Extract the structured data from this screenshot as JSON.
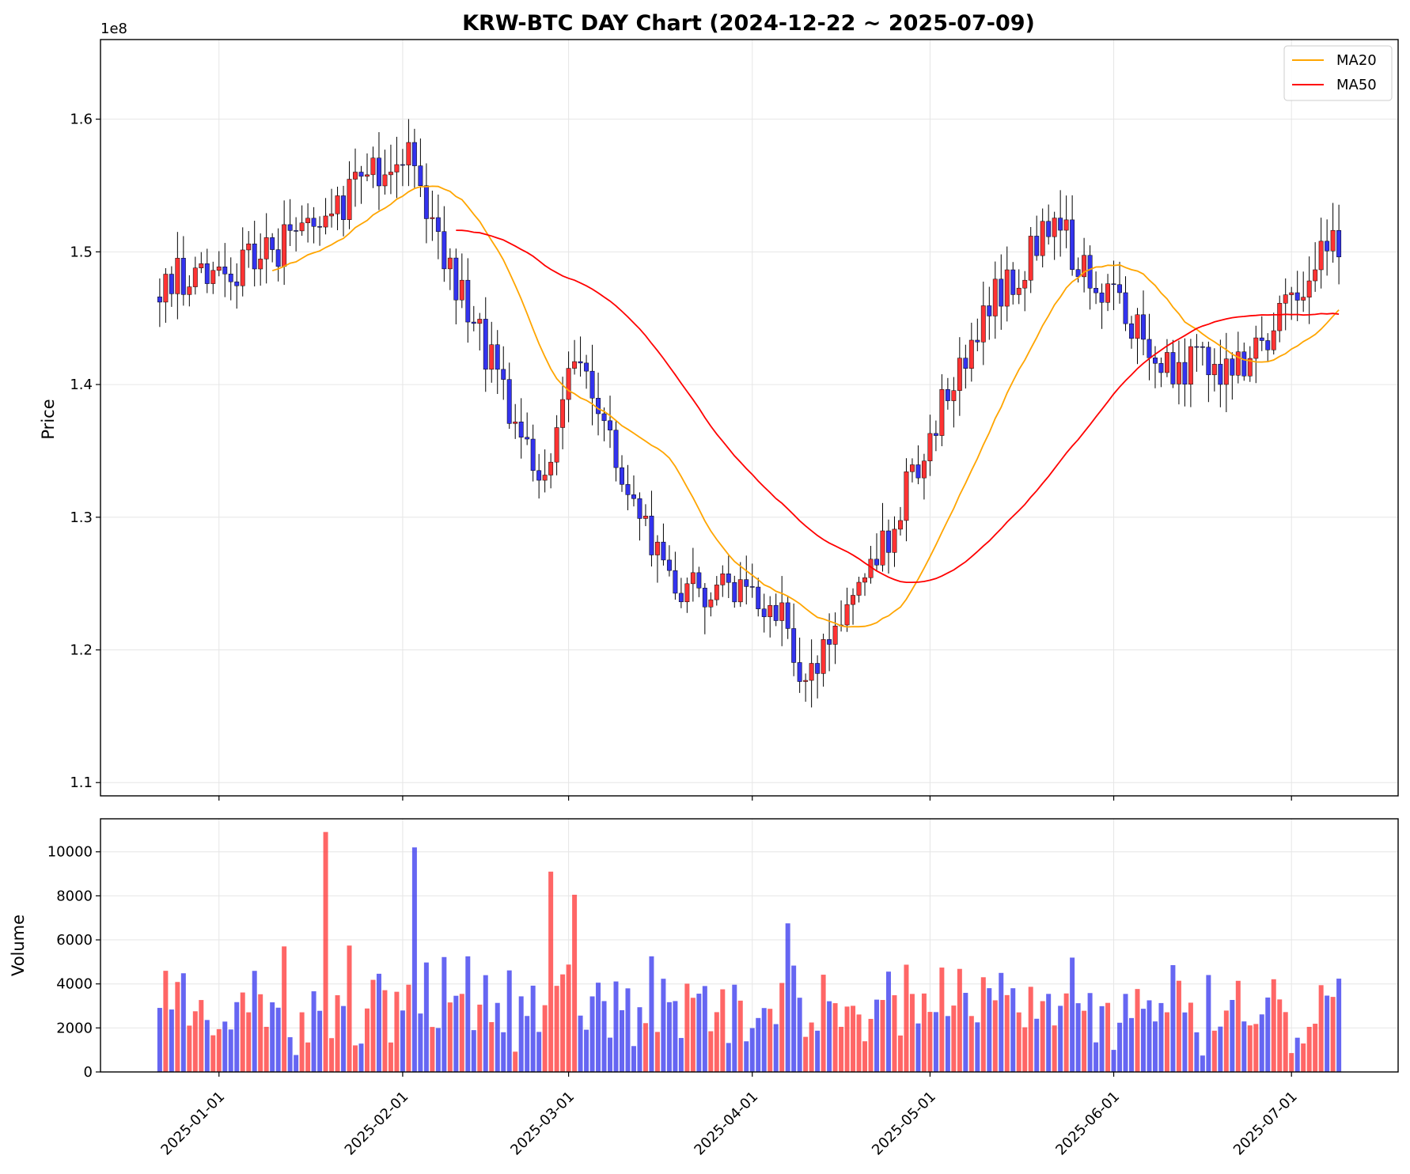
{
  "chart_data": [
    {
      "type": "candlestick",
      "title": "KRW-BTC DAY Chart (2024-12-22 ~ 2025-07-09)",
      "xlabel": "",
      "ylabel": "Price",
      "y_offset_label": "1e8",
      "ylim": [
        109000000,
        166000000
      ],
      "y_ticks": [
        110000000,
        120000000,
        130000000,
        140000000,
        150000000,
        160000000
      ],
      "y_tick_labels": [
        "1.1",
        "1.2",
        "1.3",
        "1.4",
        "1.5",
        "1.6"
      ],
      "x_ticks": [
        "2025-01-01",
        "2025-02-01",
        "2025-03-01",
        "2025-04-01",
        "2025-05-01",
        "2025-06-01",
        "2025-07-01"
      ],
      "x_range": [
        "2024-12-12",
        "2025-07-19"
      ],
      "grid": true,
      "legend_position": "top-right",
      "colors": {
        "up": "#ff3333",
        "down": "#3333ee",
        "wick": "#000000",
        "ma20": "#ffa500",
        "ma50": "#ff0000"
      },
      "series": [
        {
          "name": "MA20",
          "color": "#ffa500"
        },
        {
          "name": "MA50",
          "color": "#ff0000"
        }
      ],
      "dates": [
        "2024-12-22",
        "2025-01-09",
        "2025-02-03",
        "2025-02-04",
        "2025-02-25",
        "2025-03-02",
        "2025-03-17",
        "2025-04-05",
        "2025-04-09",
        "2025-04-22",
        "2025-05-09",
        "2025-05-22",
        "2025-06-09",
        "2025-06-22",
        "2025-07-09"
      ],
      "close": [
        147800000,
        149500000,
        158000000,
        154000000,
        132000000,
        142500000,
        125500000,
        123500000,
        117500000,
        126500000,
        144800000,
        152000000,
        141500000,
        141000000,
        151000000
      ],
      "ma20_range": [
        "2025-01-10",
        "2025-07-09"
      ],
      "ma50_range": [
        "2025-02-10",
        "2025-07-09"
      ]
    },
    {
      "type": "bar",
      "title": "",
      "xlabel": "",
      "ylabel": "Volume",
      "ylim": [
        0,
        11500
      ],
      "y_ticks": [
        0,
        2000,
        4000,
        6000,
        8000,
        10000
      ],
      "y_tick_labels": [
        "0",
        "2000",
        "4000",
        "6000",
        "8000",
        "10000"
      ],
      "x_tick_labels": [
        "2025-01-01",
        "2025-02-01",
        "2025-03-01",
        "2025-04-01",
        "2025-05-01",
        "2025-06-01",
        "2025-07-01"
      ],
      "grid": true,
      "colors": {
        "up": "#ff3333",
        "down": "#3333ee"
      },
      "peaks": [
        {
          "date": "2025-01-19",
          "value": 10900
        },
        {
          "date": "2025-02-03",
          "value": 10200
        },
        {
          "date": "2025-02-26",
          "value": 9100
        },
        {
          "date": "2025-03-02",
          "value": 8050
        },
        {
          "date": "2025-04-07",
          "value": 6750
        }
      ]
    }
  ]
}
